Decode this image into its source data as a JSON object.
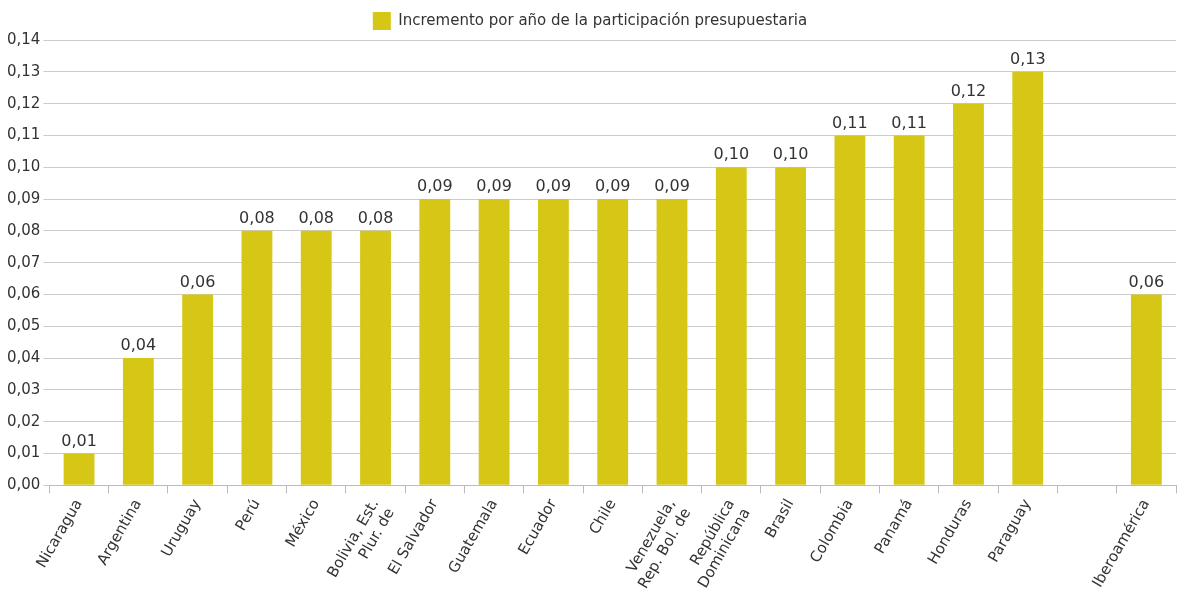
{
  "chart_data": {
    "type": "bar",
    "categories": [
      "Nicaragua",
      "Argentina",
      "Uruguay",
      "Perú",
      "México",
      "Bolivia, Est.\nPlur. de",
      "El Salvador",
      "Guatemala",
      "Ecuador",
      "Chile",
      "Venezuela,\nRep. Bol. de",
      "República\nDominicana",
      "Brasil",
      "Colombia",
      "Panamá",
      "Honduras",
      "Paraguay",
      null,
      "Iberoamérica"
    ],
    "series": [
      {
        "name": "Incremento por año de la participación presupuestaria",
        "color": "#d6c716",
        "values": [
          0.01,
          0.04,
          0.06,
          0.08,
          0.08,
          0.08,
          0.09,
          0.09,
          0.09,
          0.09,
          0.09,
          0.1,
          0.1,
          0.11,
          0.11,
          0.12,
          0.13,
          null,
          0.06
        ],
        "value_labels": [
          "0,01",
          "0,04",
          "0,06",
          "0,08",
          "0,08",
          "0,08",
          "0,09",
          "0,09",
          "0,09",
          "0,09",
          "0,09",
          "0,10",
          "0,10",
          "0,11",
          "0,11",
          "0,12",
          "0,13",
          null,
          "0,06"
        ]
      }
    ],
    "ylim": [
      0,
      0.14
    ],
    "yticks": [
      {
        "value": 0,
        "label": "0,00"
      },
      {
        "value": 0.01,
        "label": "0,01"
      },
      {
        "value": 0.02,
        "label": "0,02"
      },
      {
        "value": 0.03,
        "label": "0,03"
      },
      {
        "value": 0.04,
        "label": "0,04"
      },
      {
        "value": 0.05,
        "label": "0,05"
      },
      {
        "value": 0.06,
        "label": "0,06"
      },
      {
        "value": 0.07,
        "label": "0,07"
      },
      {
        "value": 0.08,
        "label": "0,08"
      },
      {
        "value": 0.09,
        "label": "0,09"
      },
      {
        "value": 0.1,
        "label": "0,10"
      },
      {
        "value": 0.11,
        "label": "0,11"
      },
      {
        "value": 0.12,
        "label": "0,12"
      },
      {
        "value": 0.13,
        "label": "0,13"
      },
      {
        "value": 0.14,
        "label": "0,14"
      }
    ],
    "grid": "y",
    "legend": "top"
  }
}
